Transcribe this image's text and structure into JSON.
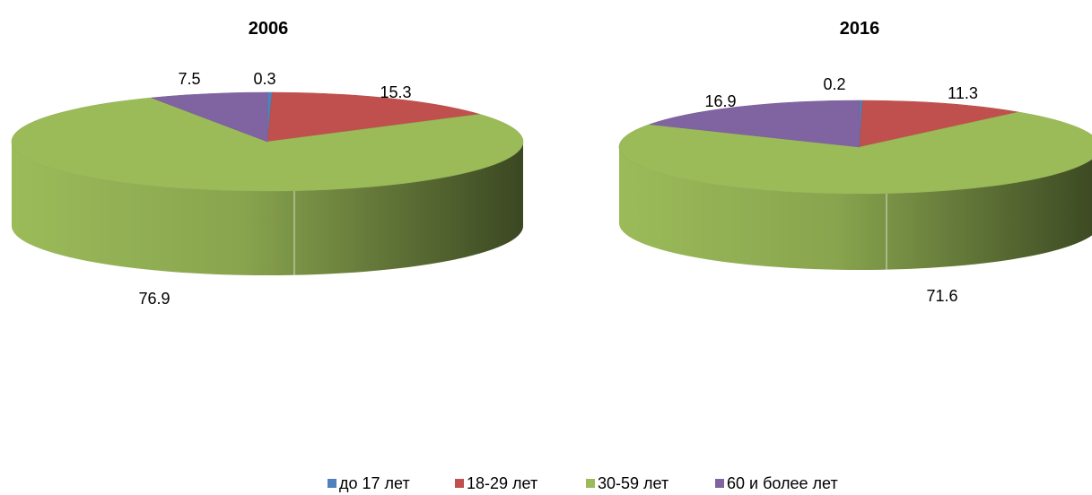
{
  "chart_data": [
    {
      "type": "pie",
      "title": "2006",
      "categories": [
        "до 17 лет",
        "18-29 лет",
        "30-59 лет",
        "60 и более лет"
      ],
      "values": [
        0.3,
        15.3,
        76.9,
        7.5
      ],
      "data_labels": [
        "0.3",
        "15.3",
        "76.9",
        "7.5"
      ],
      "style": "3d-pie"
    },
    {
      "type": "pie",
      "title": "2016",
      "categories": [
        "до 17 лет",
        "18-29 лет",
        "30-59 лет",
        "60 и более лет"
      ],
      "values": [
        0.2,
        11.3,
        71.6,
        16.9
      ],
      "data_labels": [
        "0.2",
        "11.3",
        "71.6",
        "16.9"
      ],
      "style": "3d-pie"
    }
  ],
  "legend": {
    "position": "bottom",
    "items": [
      {
        "label": "до 17 лет",
        "color": "#4F81BD"
      },
      {
        "label": "18-29 лет",
        "color": "#C0504D"
      },
      {
        "label": "30-59 лет",
        "color": "#9BBB59"
      },
      {
        "label": "60 и более лет",
        "color": "#8064A2"
      }
    ]
  },
  "colors": {
    "до 17 лет": "#4F81BD",
    "18-29 лет": "#C0504D",
    "30-59 лет": "#9BBB59",
    "60 и более лет": "#8064A2"
  }
}
